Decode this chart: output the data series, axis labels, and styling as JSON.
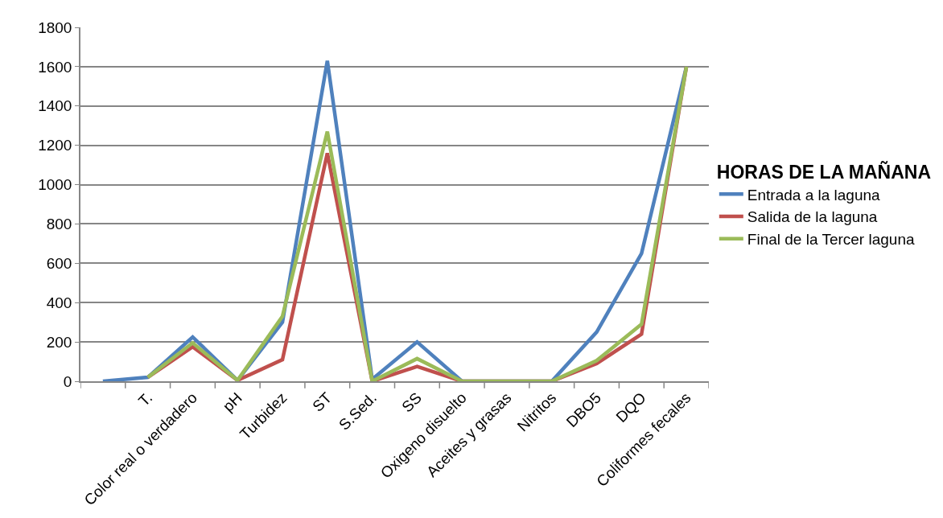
{
  "chart_data": {
    "type": "line",
    "categories": [
      null,
      "T.",
      "Color real o verdadero",
      "pH",
      "Turbidez",
      "ST",
      "S.Sed.",
      "SS",
      "Oxigeno disuelto",
      "Aceites y grasas",
      "Nitritos",
      "DBO5",
      "DQO",
      "Coliformes fecales"
    ],
    "legend_title": "HORAS DE LA MAÑANA",
    "series": [
      {
        "name": "Entrada a la laguna",
        "color": "#4f81bd",
        "values": [
          0,
          20,
          225,
          5,
          300,
          1630,
          10,
          200,
          0,
          0,
          0,
          250,
          650,
          1600
        ]
      },
      {
        "name": "Salida de la laguna",
        "color": "#c0504d",
        "values": [
          null,
          20,
          175,
          5,
          110,
          1160,
          0,
          75,
          0,
          0,
          0,
          90,
          240,
          1600
        ]
      },
      {
        "name": "Final de la Tercer laguna",
        "color": "#9bbb59",
        "values": [
          null,
          20,
          195,
          5,
          330,
          1270,
          0,
          115,
          0,
          0,
          0,
          105,
          290,
          1600
        ]
      }
    ],
    "ylim": [
      0,
      1800
    ],
    "yticks": [
      0,
      200,
      400,
      600,
      800,
      1000,
      1200,
      1400,
      1600,
      1800
    ],
    "grid": "y",
    "legend": "right",
    "marker": "none",
    "line_style": "solid"
  }
}
